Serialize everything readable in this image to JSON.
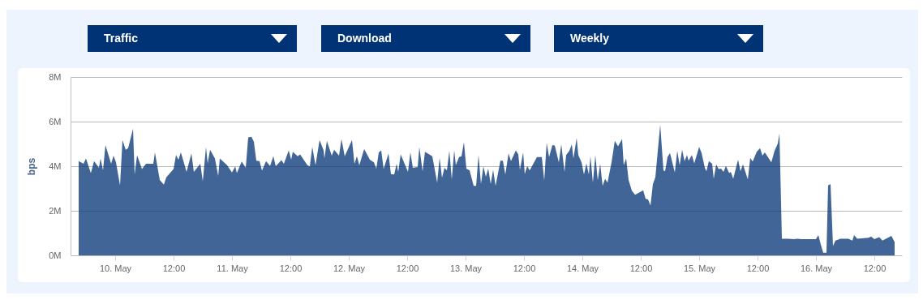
{
  "chart_data": {
    "type": "area",
    "ylabel": "bps",
    "annotations": [
      "Traffic",
      "Download",
      "Weekly"
    ],
    "xlim": [
      "--05-09T14:50",
      "--05-16T17:40"
    ],
    "xticks": [
      {
        "value": "--05-10T00:00",
        "label": "10. May"
      },
      {
        "value": "--05-10T12:00",
        "label": "12:00"
      },
      {
        "value": "--05-11T00:00",
        "label": "11. May"
      },
      {
        "value": "--05-11T12:00",
        "label": "12:00"
      },
      {
        "value": "--05-12T00:00",
        "label": "12. May"
      },
      {
        "value": "--05-12T12:00",
        "label": "12:00"
      },
      {
        "value": "--05-13T00:00",
        "label": "13. May"
      },
      {
        "value": "--05-13T12:00",
        "label": "12:00"
      },
      {
        "value": "--05-14T00:00",
        "label": "14. May"
      },
      {
        "value": "--05-14T12:00",
        "label": "12:00"
      },
      {
        "value": "--05-15T00:00",
        "label": "15. May"
      },
      {
        "value": "--05-15T12:00",
        "label": "12:00"
      },
      {
        "value": "--05-16T00:00",
        "label": "16. May"
      },
      {
        "value": "--05-16T12:00",
        "label": "12:00"
      }
    ],
    "ylim": [
      0,
      8
    ],
    "yticks": [
      {
        "value": 0,
        "label": "0M"
      },
      {
        "value": 2,
        "label": "2M"
      },
      {
        "value": 4,
        "label": "4M"
      },
      {
        "value": 6,
        "label": "6M"
      },
      {
        "value": 8,
        "label": "8M"
      }
    ],
    "grid": "y",
    "x": [
      "--05-09T16:30",
      "--05-09T17:30",
      "--05-09T18:00",
      "--05-09T19:00",
      "--05-09T19:40",
      "--05-09T20:40",
      "--05-09T21:00",
      "--05-09T21:30",
      "--05-09T22:00",
      "--05-09T23:10",
      "--05-09T23:40",
      "--05-10T00:10",
      "--05-10T01:00",
      "--05-10T01:30",
      "--05-10T02:10",
      "--05-10T02:40",
      "--05-10T03:40",
      "--05-10T04:00",
      "--05-10T04:30",
      "--05-10T05:30",
      "--05-10T06:20",
      "--05-10T07:50",
      "--05-10T08:10",
      "--05-10T09:10",
      "--05-10T10:00",
      "--05-10T10:30",
      "--05-10T12:00",
      "--05-10T12:30",
      "--05-10T13:00",
      "--05-10T13:30",
      "--05-10T14:40",
      "--05-10T15:40",
      "--05-10T16:10",
      "--05-10T17:30",
      "--05-10T18:00",
      "--05-10T18:40",
      "--05-10T19:00",
      "--05-10T19:30",
      "--05-10T20:30",
      "--05-10T21:10",
      "--05-10T21:30",
      "--05-10T23:00",
      "--05-11T00:00",
      "--05-11T00:40",
      "--05-11T01:00",
      "--05-11T02:00",
      "--05-11T02:50",
      "--05-11T03:20",
      "--05-11T04:00",
      "--05-11T04:30",
      "--05-11T05:00",
      "--05-11T05:40",
      "--05-11T06:10",
      "--05-11T07:00",
      "--05-11T07:50",
      "--05-11T08:30",
      "--05-11T09:00",
      "--05-11T10:10",
      "--05-11T10:40",
      "--05-11T11:40",
      "--05-11T12:10",
      "--05-11T12:30",
      "--05-11T13:30",
      "--05-11T14:00",
      "--05-11T15:30",
      "--05-11T16:00",
      "--05-11T16:30",
      "--05-11T17:10",
      "--05-11T18:00",
      "--05-11T18:50",
      "--05-11T19:00",
      "--05-11T19:30",
      "--05-11T20:30",
      "--05-11T21:00",
      "--05-11T22:00",
      "--05-11T22:30",
      "--05-11T23:10",
      "--05-12T00:40",
      "--05-12T01:10",
      "--05-12T01:40",
      "--05-12T02:10",
      "--05-12T03:10",
      "--05-12T04:20",
      "--05-12T05:10",
      "--05-12T05:40",
      "--05-12T06:10",
      "--05-12T06:40",
      "--05-12T07:10",
      "--05-12T08:10",
      "--05-12T08:40",
      "--05-12T09:20",
      "--05-12T09:50",
      "--05-12T10:10",
      "--05-12T10:40",
      "--05-12T12:10",
      "--05-12T12:40",
      "--05-12T13:10",
      "--05-12T14:10",
      "--05-12T14:30",
      "--05-12T15:10",
      "--05-12T15:40",
      "--05-12T17:10",
      "--05-12T18:10",
      "--05-12T18:40",
      "--05-12T19:10",
      "--05-12T19:40",
      "--05-12T20:10",
      "--05-12T20:40",
      "--05-12T21:10",
      "--05-12T21:40",
      "--05-12T22:00",
      "--05-12T22:40",
      "--05-12T23:10",
      "--05-12T23:40",
      "--05-13T00:10",
      "--05-13T00:50",
      "--05-13T01:40",
      "--05-13T02:10",
      "--05-13T02:40",
      "--05-13T03:10",
      "--05-13T03:40",
      "--05-13T04:10",
      "--05-13T04:40",
      "--05-13T05:10",
      "--05-13T05:40",
      "--05-13T06:10",
      "--05-13T07:10",
      "--05-13T07:40",
      "--05-13T08:10",
      "--05-13T08:50",
      "--05-13T09:20",
      "--05-13T10:20",
      "--05-13T10:50",
      "--05-13T11:10",
      "--05-13T11:50",
      "--05-13T12:10",
      "--05-13T12:40",
      "--05-13T13:10",
      "--05-13T14:40",
      "--05-13T15:40",
      "--05-13T16:10",
      "--05-13T16:40",
      "--05-13T17:10",
      "--05-13T17:50",
      "--05-13T18:20",
      "--05-13T19:10",
      "--05-13T19:40",
      "--05-13T20:20",
      "--05-13T20:40",
      "--05-13T21:20",
      "--05-13T21:50",
      "--05-13T22:10",
      "--05-13T22:50",
      "--05-13T23:10",
      "--05-13T23:50",
      "--05-14T00:20",
      "--05-14T00:50",
      "--05-14T01:20",
      "--05-14T01:40",
      "--05-14T02:10",
      "--05-14T02:40",
      "--05-14T03:10",
      "--05-14T03:40",
      "--05-14T04:10",
      "--05-14T04:40",
      "--05-14T05:10",
      "--05-14T06:00",
      "--05-14T06:40",
      "--05-14T07:20",
      "--05-14T08:10",
      "--05-14T08:30",
      "--05-14T09:00",
      "--05-14T09:30",
      "--05-14T10:10",
      "--05-14T10:50",
      "--05-14T11:50",
      "--05-14T12:30",
      "--05-14T13:00",
      "--05-14T13:30",
      "--05-14T14:00",
      "--05-14T14:30",
      "--05-14T15:00",
      "--05-14T16:00",
      "--05-14T16:40",
      "--05-14T17:00",
      "--05-14T17:30",
      "--05-14T18:00",
      "--05-14T19:00",
      "--05-14T19:30",
      "--05-14T20:00",
      "--05-14T20:30",
      "--05-14T21:00",
      "--05-14T21:30",
      "--05-14T21:50",
      "--05-14T22:30",
      "--05-14T23:00",
      "--05-15T00:00",
      "--05-15T00:30",
      "--05-15T01:10",
      "--05-15T01:30",
      "--05-15T02:00",
      "--05-15T02:40",
      "--05-15T03:00",
      "--05-15T03:30",
      "--05-15T04:00",
      "--05-15T04:30",
      "--05-15T05:00",
      "--05-15T05:30",
      "--05-15T06:10",
      "--05-15T06:30",
      "--05-15T07:00",
      "--05-15T08:00",
      "--05-15T08:30",
      "--05-15T09:00",
      "--05-15T10:00",
      "--05-15T10:30",
      "--05-15T11:00",
      "--05-15T11:50",
      "--05-15T12:30",
      "--05-15T13:00",
      "--05-15T13:30",
      "--05-15T14:50",
      "--05-15T15:30",
      "--05-15T16:10",
      "--05-15T16:30",
      "--05-15T17:00",
      "--05-15T18:10",
      "--05-15T19:30",
      "--05-15T20:10",
      "--05-15T21:00",
      "--05-16T00:00",
      "--05-16T00:30",
      "--05-16T01:00",
      "--05-16T01:30",
      "--05-16T02:10",
      "--05-16T02:30",
      "--05-16T03:00",
      "--05-16T03:30",
      "--05-16T04:00",
      "--05-16T04:30",
      "--05-16T05:00",
      "--05-16T06:40",
      "--05-16T07:30",
      "--05-16T07:50",
      "--05-16T08:30",
      "--05-16T10:50",
      "--05-16T11:20",
      "--05-16T12:00",
      "--05-16T13:00",
      "--05-16T13:40",
      "--05-16T15:30",
      "--05-16T16:10"
    ],
    "series": [
      {
        "color": "#0b3a78",
        "values": [
          4.23,
          4.11,
          4.35,
          3.69,
          4.23,
          3.93,
          4.35,
          3.81,
          4.95,
          4.11,
          4.47,
          4.17,
          3.14,
          5.17,
          4.74,
          4.81,
          5.68,
          3.63,
          4.49,
          3.87,
          4.11,
          4.11,
          4.62,
          3.38,
          3.17,
          3.5,
          3.87,
          4.5,
          4.29,
          4.62,
          3.75,
          4.57,
          3.75,
          4.11,
          3.32,
          4.86,
          4.13,
          4.74,
          4.35,
          3.56,
          4.35,
          4.05,
          3.72,
          3.99,
          3.69,
          4.21,
          3.93,
          5.29,
          5.32,
          5.1,
          4.25,
          4.23,
          3.8,
          4.23,
          4.01,
          4.45,
          4.0,
          4.27,
          4.11,
          4.71,
          4.29,
          4.65,
          4.45,
          4.53,
          4.05,
          3.99,
          4.86,
          4.05,
          5.17,
          4.71,
          4.35,
          5.14,
          4.47,
          4.74,
          4.47,
          5.22,
          4.45,
          5.17,
          4.11,
          4.45,
          4.05,
          4.77,
          4.29,
          4.17,
          3.89,
          4.62,
          4.71,
          3.87,
          4.57,
          3.65,
          3.63,
          4.11,
          3.75,
          4.53,
          3.75,
          4.62,
          3.93,
          3.96,
          4.86,
          3.77,
          4.65,
          4.45,
          3.26,
          4.37,
          3.48,
          3.93,
          3.81,
          4.69,
          3.41,
          4.71,
          4.05,
          4.41,
          4.45,
          5.08,
          3.89,
          3.81,
          3.12,
          3.12,
          4.5,
          3.2,
          3.99,
          3.53,
          3.89,
          3.2,
          3.84,
          3.12,
          4.25,
          4.25,
          3.63,
          4.57,
          4.23,
          4.71,
          4.53,
          3.84,
          4.62,
          3.65,
          4.01,
          3.81,
          4.41,
          4.41,
          3.36,
          5.05,
          4.41,
          4.95,
          4.93,
          4.17,
          4.98,
          3.75,
          4.5,
          4.69,
          4.98,
          4.35,
          5.26,
          4.5,
          4.17,
          3.63,
          4.13,
          3.63,
          4.45,
          3.26,
          4.5,
          3.36,
          4.11,
          3.12,
          3.44,
          3.26,
          4.17,
          5.14,
          4.89,
          5.22,
          4.05,
          4.35,
          3.38,
          2.9,
          2.72,
          2.84,
          2.92,
          2.54,
          2.51,
          2.24,
          3.2,
          3.5,
          5.86,
          3.81,
          3.77,
          4.41,
          4.59,
          3.72,
          4.69,
          4.05,
          4.74,
          4.23,
          4.5,
          4.25,
          4.5,
          4.13,
          4.86,
          4.59,
          3.93,
          3.77,
          4.23,
          4.11,
          3.44,
          4.08,
          3.87,
          3.89,
          3.75,
          4.01,
          3.69,
          3.75,
          3.44,
          4.29,
          3.77,
          4.08,
          3.41,
          4.37,
          4.21,
          4.65,
          4.81,
          4.47,
          4.62,
          4.17,
          4.69,
          5.02,
          5.46,
          0.75,
          0.75,
          0.73,
          0.75,
          0.73,
          0.73,
          0.91,
          0.48,
          0.12,
          0.12,
          3.14,
          3.2,
          0.42,
          0.66,
          0.7,
          0.75,
          0.75,
          0.66,
          0.91,
          0.75,
          0.79,
          0.85,
          0.73,
          0.82,
          0.66,
          0.87,
          0.6
        ]
      }
    ]
  }
}
